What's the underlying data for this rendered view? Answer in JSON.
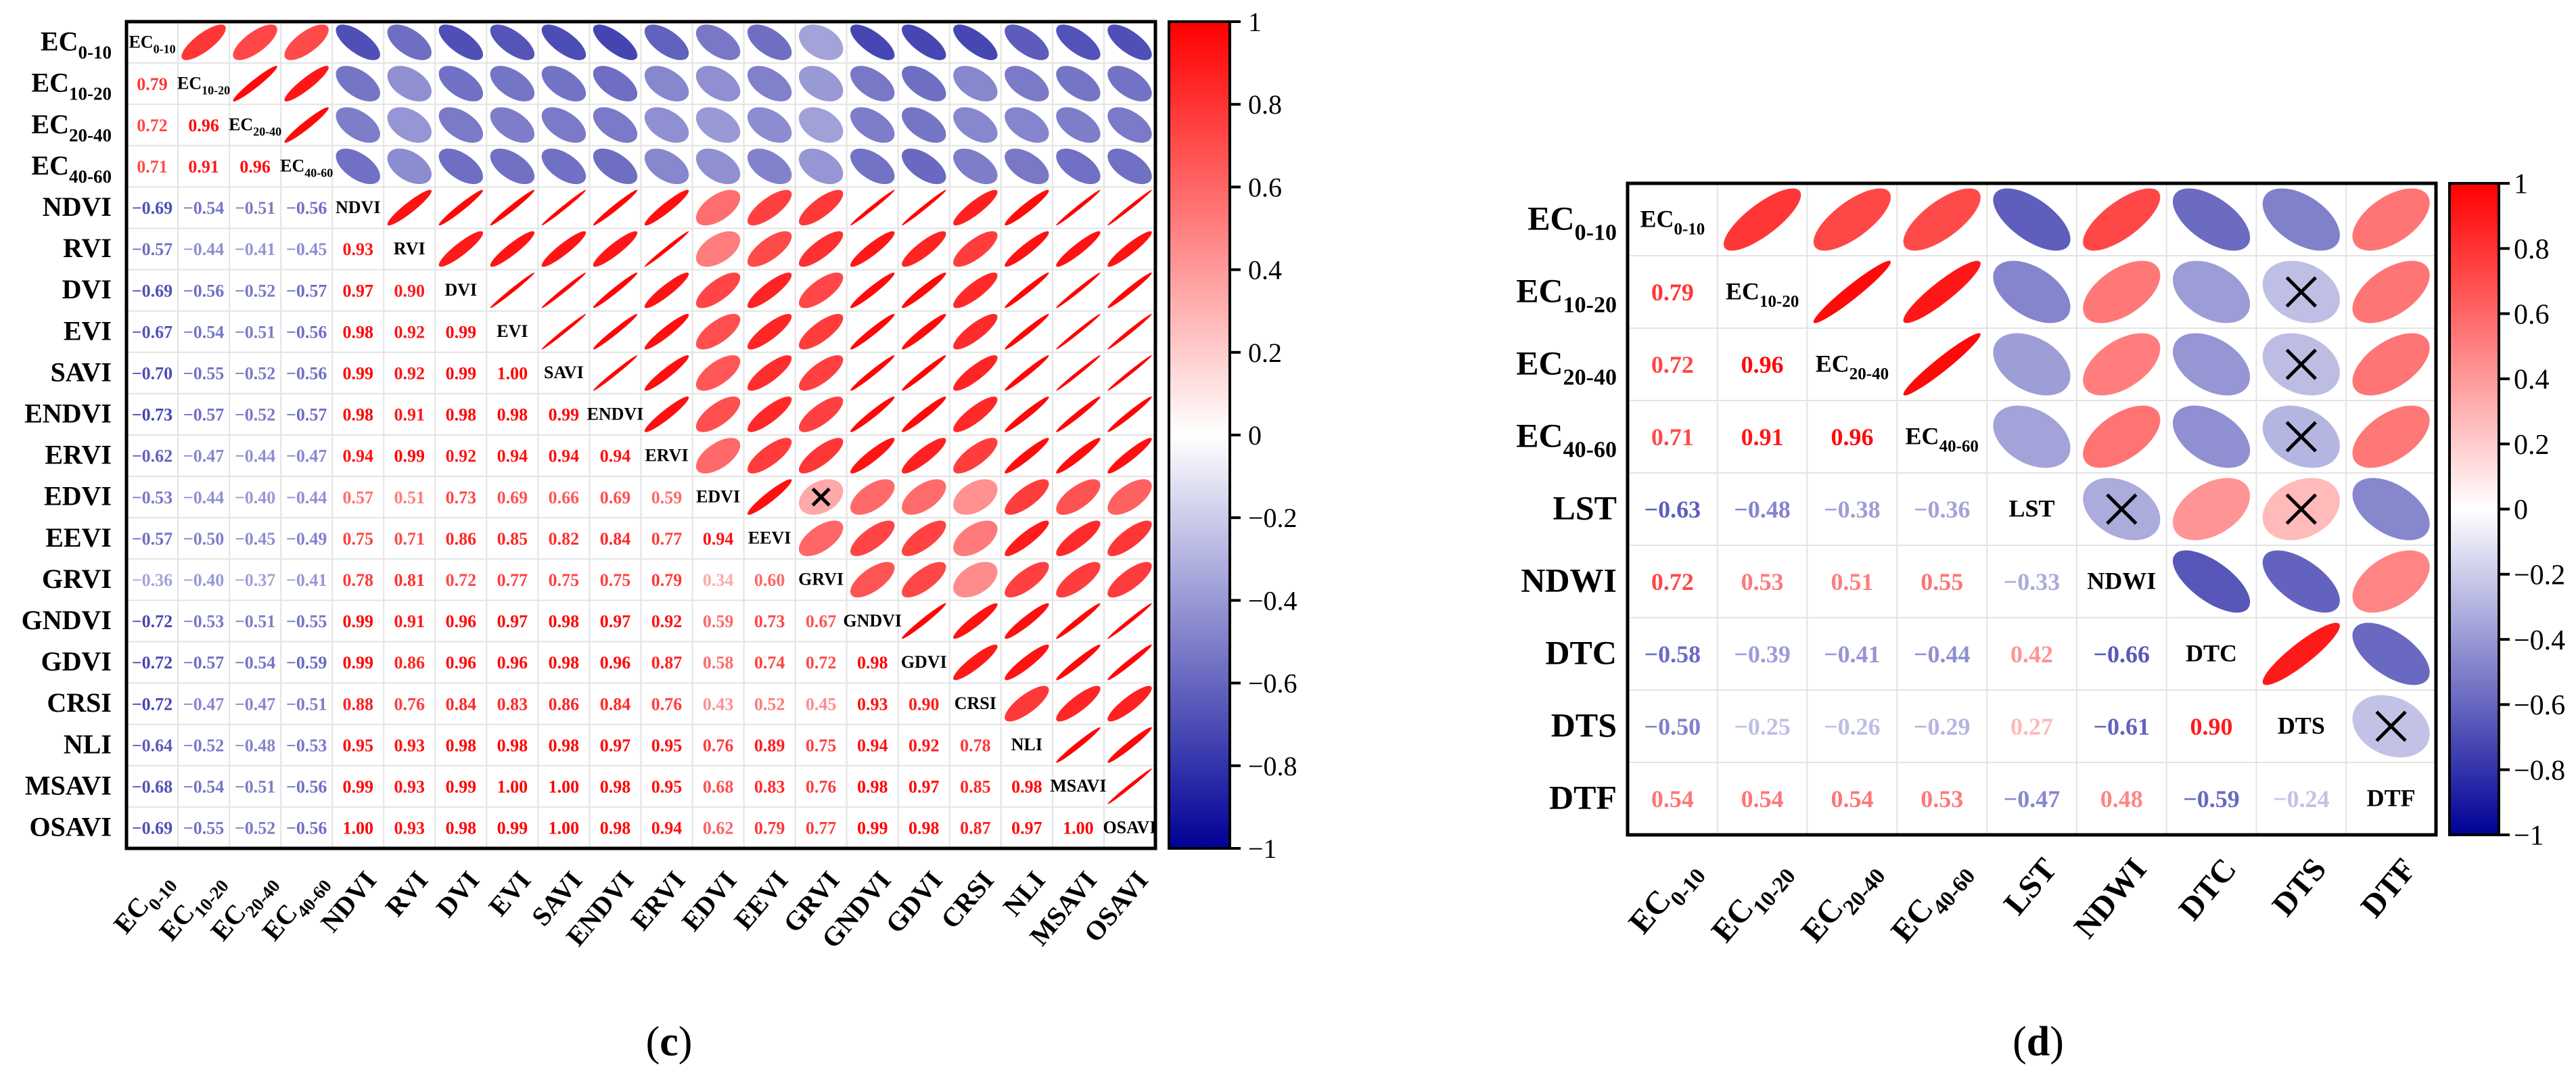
{
  "chart_data": [
    {
      "type": "heatmap",
      "subtype": "correlation-matrix-ellipse",
      "caption_prefix": "(",
      "caption_letter": "c",
      "caption_suffix": ")",
      "variables": [
        {
          "main": "EC",
          "sub": "0-10"
        },
        {
          "main": "EC",
          "sub": "10-20"
        },
        {
          "main": "EC",
          "sub": "20-40"
        },
        {
          "main": "EC",
          "sub": "40-60"
        },
        {
          "main": "NDVI"
        },
        {
          "main": "RVI"
        },
        {
          "main": "DVI"
        },
        {
          "main": "EVI"
        },
        {
          "main": "SAVI"
        },
        {
          "main": "ENDVI"
        },
        {
          "main": "ERVI"
        },
        {
          "main": "EDVI"
        },
        {
          "main": "EEVI"
        },
        {
          "main": "GRVI"
        },
        {
          "main": "GNDVI"
        },
        {
          "main": "GDVI"
        },
        {
          "main": "CRSI"
        },
        {
          "main": "NLI"
        },
        {
          "main": "MSAVI"
        },
        {
          "main": "OSAVI"
        }
      ],
      "lower_triangle": [
        [],
        [
          0.79
        ],
        [
          0.72,
          0.96
        ],
        [
          0.71,
          0.91,
          0.96
        ],
        [
          -0.69,
          -0.54,
          -0.51,
          -0.56
        ],
        [
          -0.57,
          -0.44,
          -0.41,
          -0.45,
          0.93
        ],
        [
          -0.69,
          -0.56,
          -0.52,
          -0.57,
          0.97,
          0.9
        ],
        [
          -0.67,
          -0.54,
          -0.51,
          -0.56,
          0.98,
          0.92,
          0.99
        ],
        [
          -0.7,
          -0.55,
          -0.52,
          -0.56,
          0.99,
          0.92,
          0.99,
          1.0
        ],
        [
          -0.73,
          -0.57,
          -0.52,
          -0.57,
          0.98,
          0.91,
          0.98,
          0.98,
          0.99
        ],
        [
          -0.62,
          -0.47,
          -0.44,
          -0.47,
          0.94,
          0.99,
          0.92,
          0.94,
          0.94,
          0.94
        ],
        [
          -0.53,
          -0.44,
          -0.4,
          -0.44,
          0.57,
          0.51,
          0.73,
          0.69,
          0.66,
          0.69,
          0.59
        ],
        [
          -0.57,
          -0.5,
          -0.45,
          -0.49,
          0.75,
          0.71,
          0.86,
          0.85,
          0.82,
          0.84,
          0.77,
          0.94
        ],
        [
          -0.36,
          -0.4,
          -0.37,
          -0.41,
          0.78,
          0.81,
          0.72,
          0.77,
          0.75,
          0.75,
          0.79,
          0.34,
          0.6
        ],
        [
          -0.72,
          -0.53,
          -0.51,
          -0.55,
          0.99,
          0.91,
          0.96,
          0.97,
          0.98,
          0.97,
          0.92,
          0.59,
          0.73,
          0.67
        ],
        [
          -0.72,
          -0.57,
          -0.54,
          -0.59,
          0.99,
          0.86,
          0.96,
          0.96,
          0.98,
          0.96,
          0.87,
          0.58,
          0.74,
          0.72,
          0.98
        ],
        [
          -0.72,
          -0.47,
          -0.47,
          -0.51,
          0.88,
          0.76,
          0.84,
          0.83,
          0.86,
          0.84,
          0.76,
          0.43,
          0.52,
          0.45,
          0.93,
          0.9
        ],
        [
          -0.64,
          -0.52,
          -0.48,
          -0.53,
          0.95,
          0.93,
          0.98,
          0.98,
          0.98,
          0.97,
          0.95,
          0.76,
          0.89,
          0.75,
          0.94,
          0.92,
          0.78
        ],
        [
          -0.68,
          -0.54,
          -0.51,
          -0.56,
          0.99,
          0.93,
          0.99,
          1.0,
          1.0,
          0.98,
          0.95,
          0.68,
          0.83,
          0.76,
          0.98,
          0.97,
          0.85,
          0.98
        ],
        [
          -0.69,
          -0.55,
          -0.52,
          -0.56,
          1.0,
          0.93,
          0.98,
          0.99,
          1.0,
          0.98,
          0.94,
          0.62,
          0.79,
          0.77,
          0.99,
          0.98,
          0.87,
          0.97,
          1.0
        ]
      ],
      "insignificant_pairs": [
        [
          "EDVI",
          "GRVI"
        ]
      ],
      "colorbar": {
        "range": [
          -1,
          1
        ],
        "ticks": [
          "1",
          "0.8",
          "0.6",
          "0.4",
          "0.2",
          "0",
          "−0.2",
          "−0.4",
          "−0.6",
          "−0.8",
          "−1"
        ]
      }
    },
    {
      "type": "heatmap",
      "subtype": "correlation-matrix-ellipse",
      "caption_prefix": "(",
      "caption_letter": "d",
      "caption_suffix": ")",
      "variables": [
        {
          "main": "EC",
          "sub": "0-10"
        },
        {
          "main": "EC",
          "sub": "10-20"
        },
        {
          "main": "EC",
          "sub": "20-40"
        },
        {
          "main": "EC",
          "sub": "40-60"
        },
        {
          "main": "LST"
        },
        {
          "main": "NDWI"
        },
        {
          "main": "DTC"
        },
        {
          "main": "DTS"
        },
        {
          "main": "DTF"
        }
      ],
      "lower_triangle": [
        [],
        [
          0.79
        ],
        [
          0.72,
          0.96
        ],
        [
          0.71,
          0.91,
          0.96
        ],
        [
          -0.63,
          -0.48,
          -0.38,
          -0.36
        ],
        [
          0.72,
          0.53,
          0.51,
          0.55,
          -0.33
        ],
        [
          -0.58,
          -0.39,
          -0.41,
          -0.44,
          0.42,
          -0.66
        ],
        [
          -0.5,
          -0.25,
          -0.26,
          -0.29,
          0.27,
          -0.61,
          0.9
        ],
        [
          0.54,
          0.54,
          0.54,
          0.53,
          -0.47,
          0.48,
          -0.59,
          -0.24
        ]
      ],
      "insignificant_pairs": [
        [
          "EC10-20",
          "DTS"
        ],
        [
          "EC20-40",
          "DTS"
        ],
        [
          "EC40-60",
          "DTS"
        ],
        [
          "LST",
          "NDWI"
        ],
        [
          "LST",
          "DTS"
        ],
        [
          "DTS",
          "DTF"
        ]
      ],
      "colorbar": {
        "range": [
          -1,
          1
        ],
        "ticks": [
          "1",
          "0.8",
          "0.6",
          "0.4",
          "0.2",
          "0",
          "−0.2",
          "−0.4",
          "−0.6",
          "−0.8",
          "−1"
        ]
      }
    }
  ],
  "colors": {
    "positive": "#FF0000",
    "zero": "#FFFFFF",
    "negative": "#000096",
    "grid": "#E3E3E3",
    "border": "#000000"
  }
}
